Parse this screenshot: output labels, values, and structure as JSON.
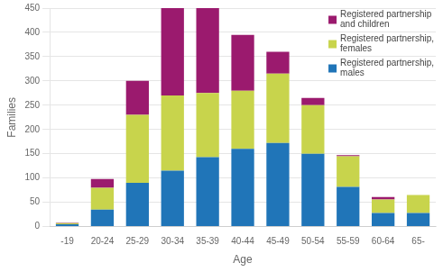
{
  "chart_data": {
    "type": "bar",
    "stacked": true,
    "categories": [
      "-19",
      "20-24",
      "25-29",
      "30-34",
      "35-39",
      "40-44",
      "45-49",
      "50-54",
      "55-59",
      "60-64",
      "65-"
    ],
    "series": [
      {
        "name": "Registered partnership,\nmales",
        "color": "#2075b8",
        "values": [
          5,
          35,
          90,
          115,
          143,
          160,
          172,
          150,
          82,
          28,
          28
        ]
      },
      {
        "name": "Registered partnership,\nfemales",
        "color": "#c8d44c",
        "values": [
          2,
          45,
          140,
          155,
          132,
          120,
          143,
          100,
          63,
          28,
          37
        ]
      },
      {
        "name": "Registered partnership\nand children",
        "color": "#9b1a6e",
        "values": [
          1,
          18,
          70,
          180,
          175,
          115,
          45,
          15,
          2,
          5,
          0
        ]
      }
    ],
    "xlabel": "Age",
    "ylabel": "Families",
    "ylim": [
      0,
      450
    ],
    "yticks": [
      0,
      50,
      100,
      150,
      200,
      250,
      300,
      350,
      400,
      450
    ],
    "grid": "y",
    "legend": "upper right"
  }
}
